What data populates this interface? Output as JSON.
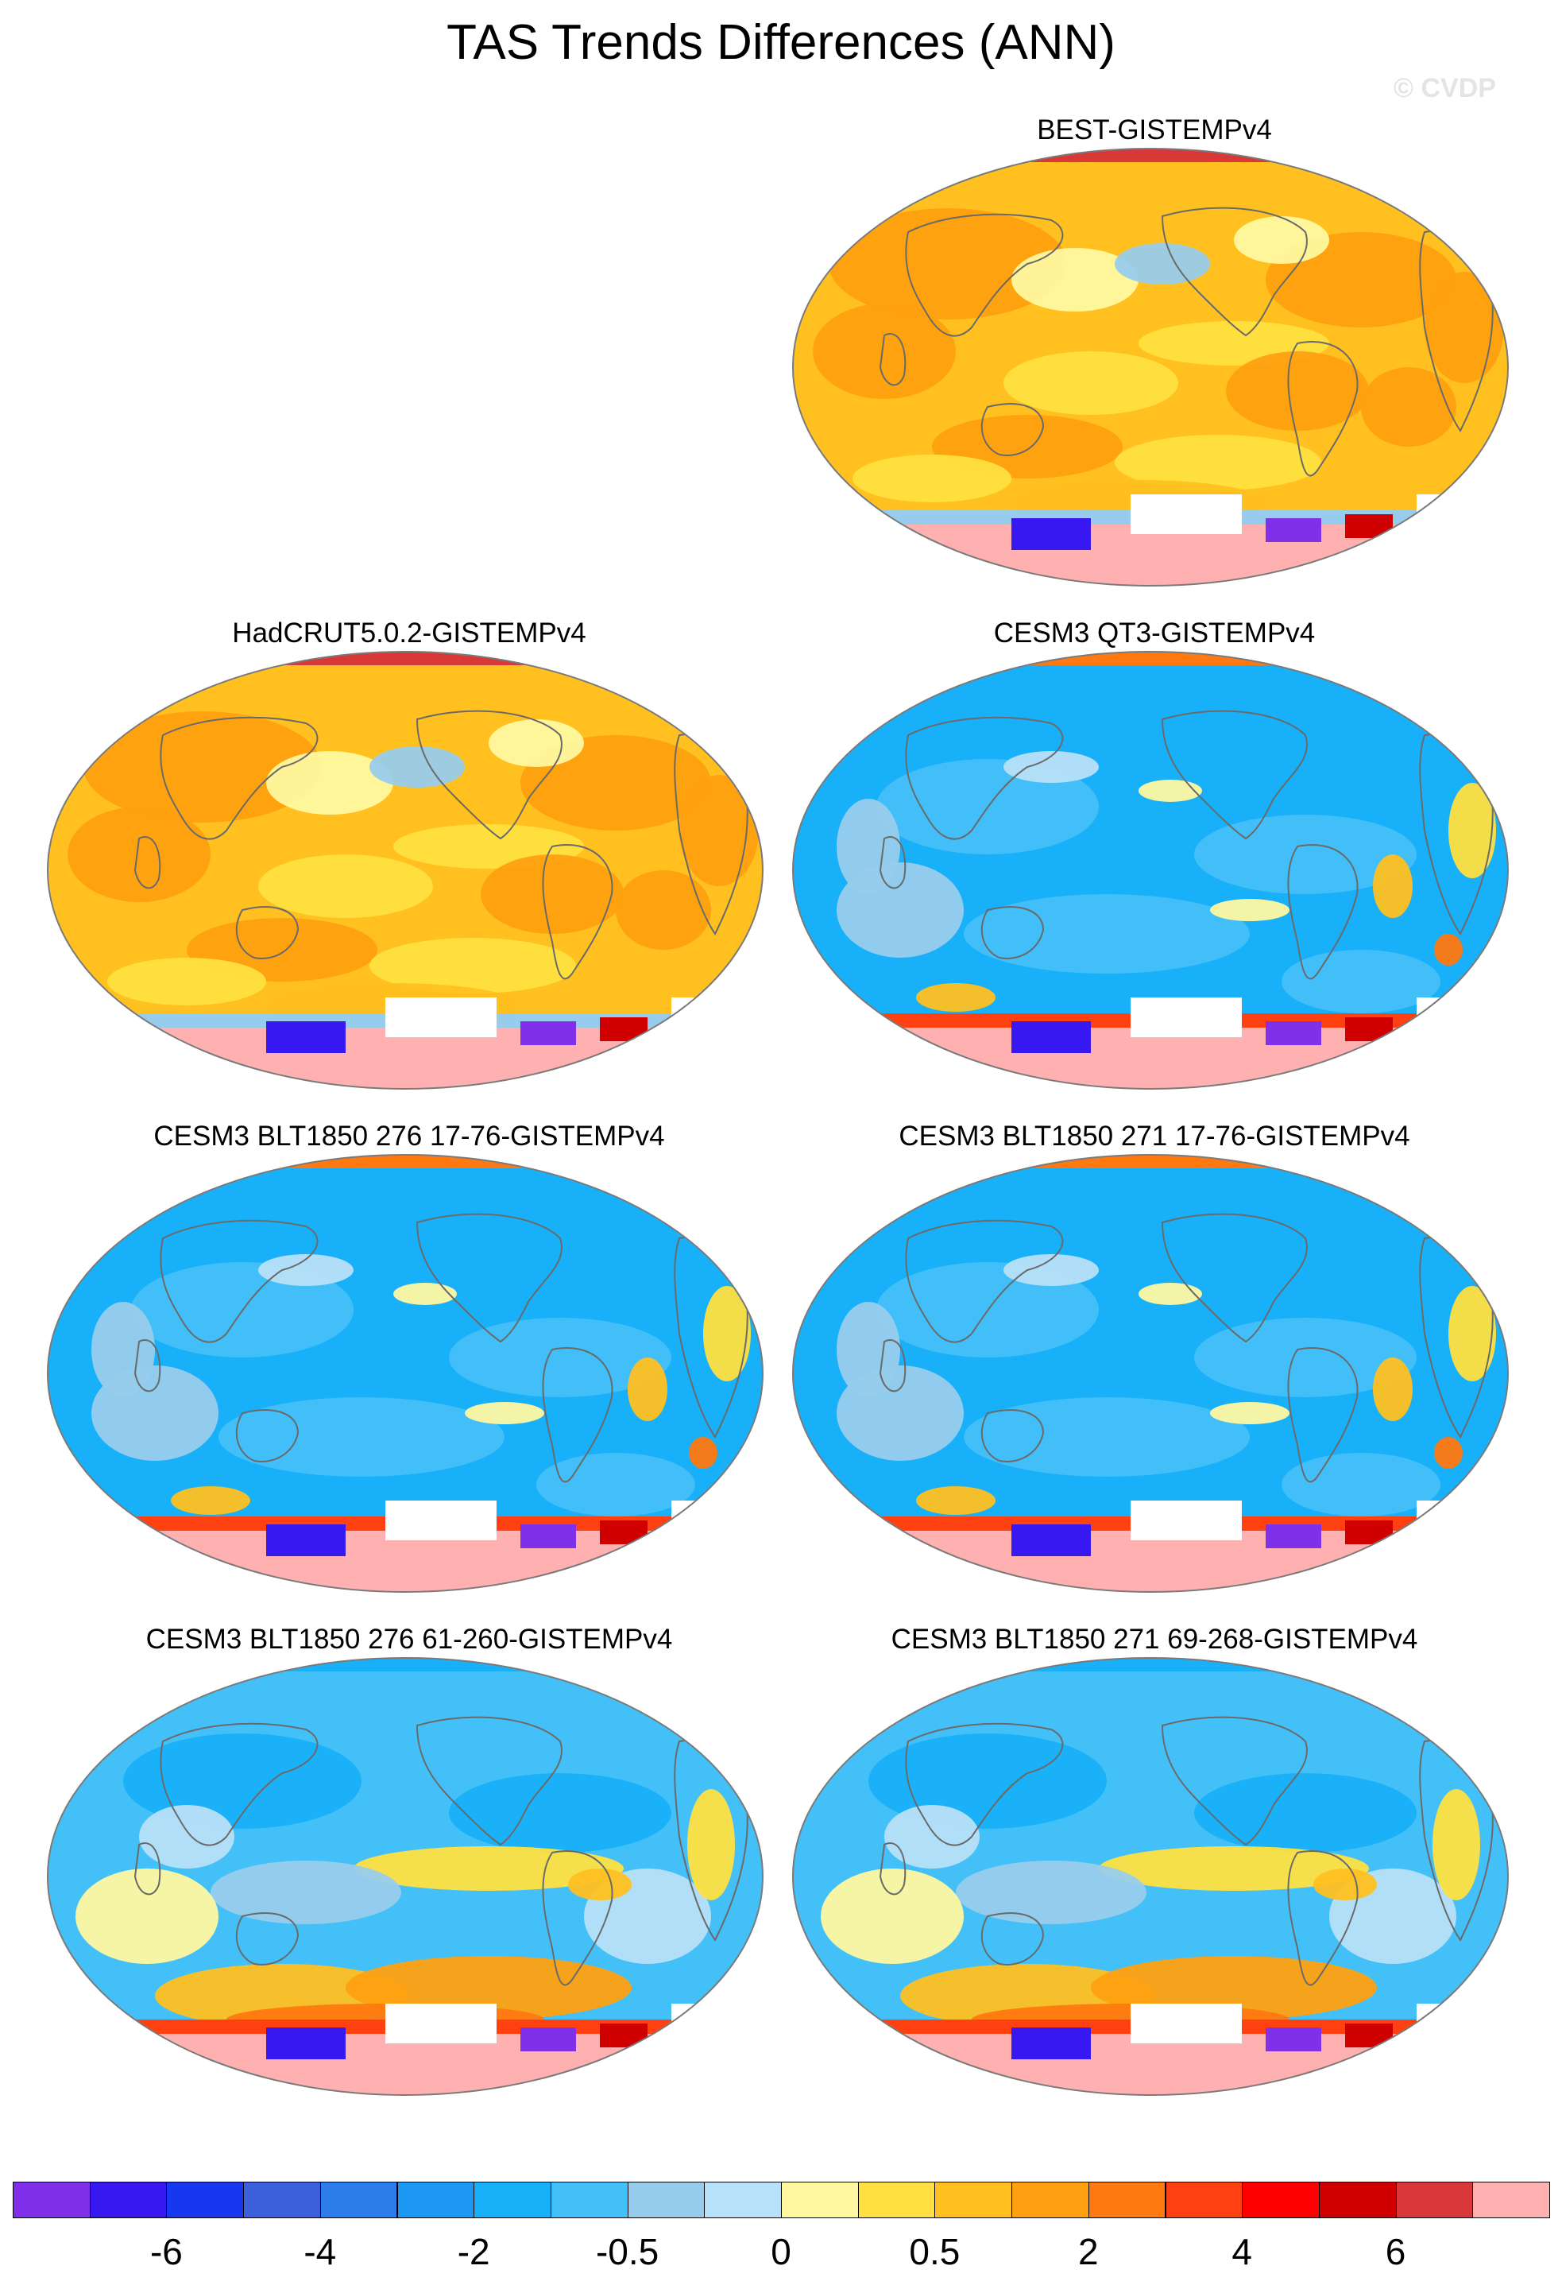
{
  "figure": {
    "title": "TAS Trends Differences (ANN)",
    "watermark": "© CVDP"
  },
  "panels": [
    {
      "id": "best",
      "title": "BEST-GISTEMPv4",
      "regime": "warm"
    },
    {
      "id": "hadcrut",
      "title": "HadCRUT5.0.2-GISTEMPv4",
      "regime": "warm"
    },
    {
      "id": "qt3",
      "title": "CESM3 QT3-GISTEMPv4",
      "regime": "cool"
    },
    {
      "id": "b276a",
      "title": "CESM3 BLT1850 276 17-76-GISTEMPv4",
      "regime": "cool"
    },
    {
      "id": "b271a",
      "title": "CESM3 BLT1850 271 17-76-GISTEMPv4",
      "regime": "cool"
    },
    {
      "id": "b276b",
      "title": "CESM3 BLT1850 276 61-260-GISTEMPv4",
      "regime": "mixed"
    },
    {
      "id": "b271b",
      "title": "CESM3 BLT1850 271 69-268-GISTEMPv4",
      "regime": "mixed"
    }
  ],
  "colorbar": {
    "colors": [
      "#8030e8",
      "#3818f0",
      "#1838f0",
      "#3c60dc",
      "#2c7cec",
      "#1c98f4",
      "#18b0f8",
      "#44c0f8",
      "#98ccec",
      "#b8e0f8",
      "#fff8a0",
      "#ffe040",
      "#ffc020",
      "#ffa010",
      "#ff7810",
      "#ff4010",
      "#ff0000",
      "#d00000",
      "#d83838",
      "#ffb0b0"
    ],
    "labels": [
      "-6",
      "-4",
      "-2",
      "-0.5",
      "0",
      "0.5",
      "2",
      "4",
      "6"
    ]
  },
  "legend_colors": {
    "background": "#ffffff",
    "coastline": "#6a6a6a",
    "missing": "#ffffff"
  }
}
